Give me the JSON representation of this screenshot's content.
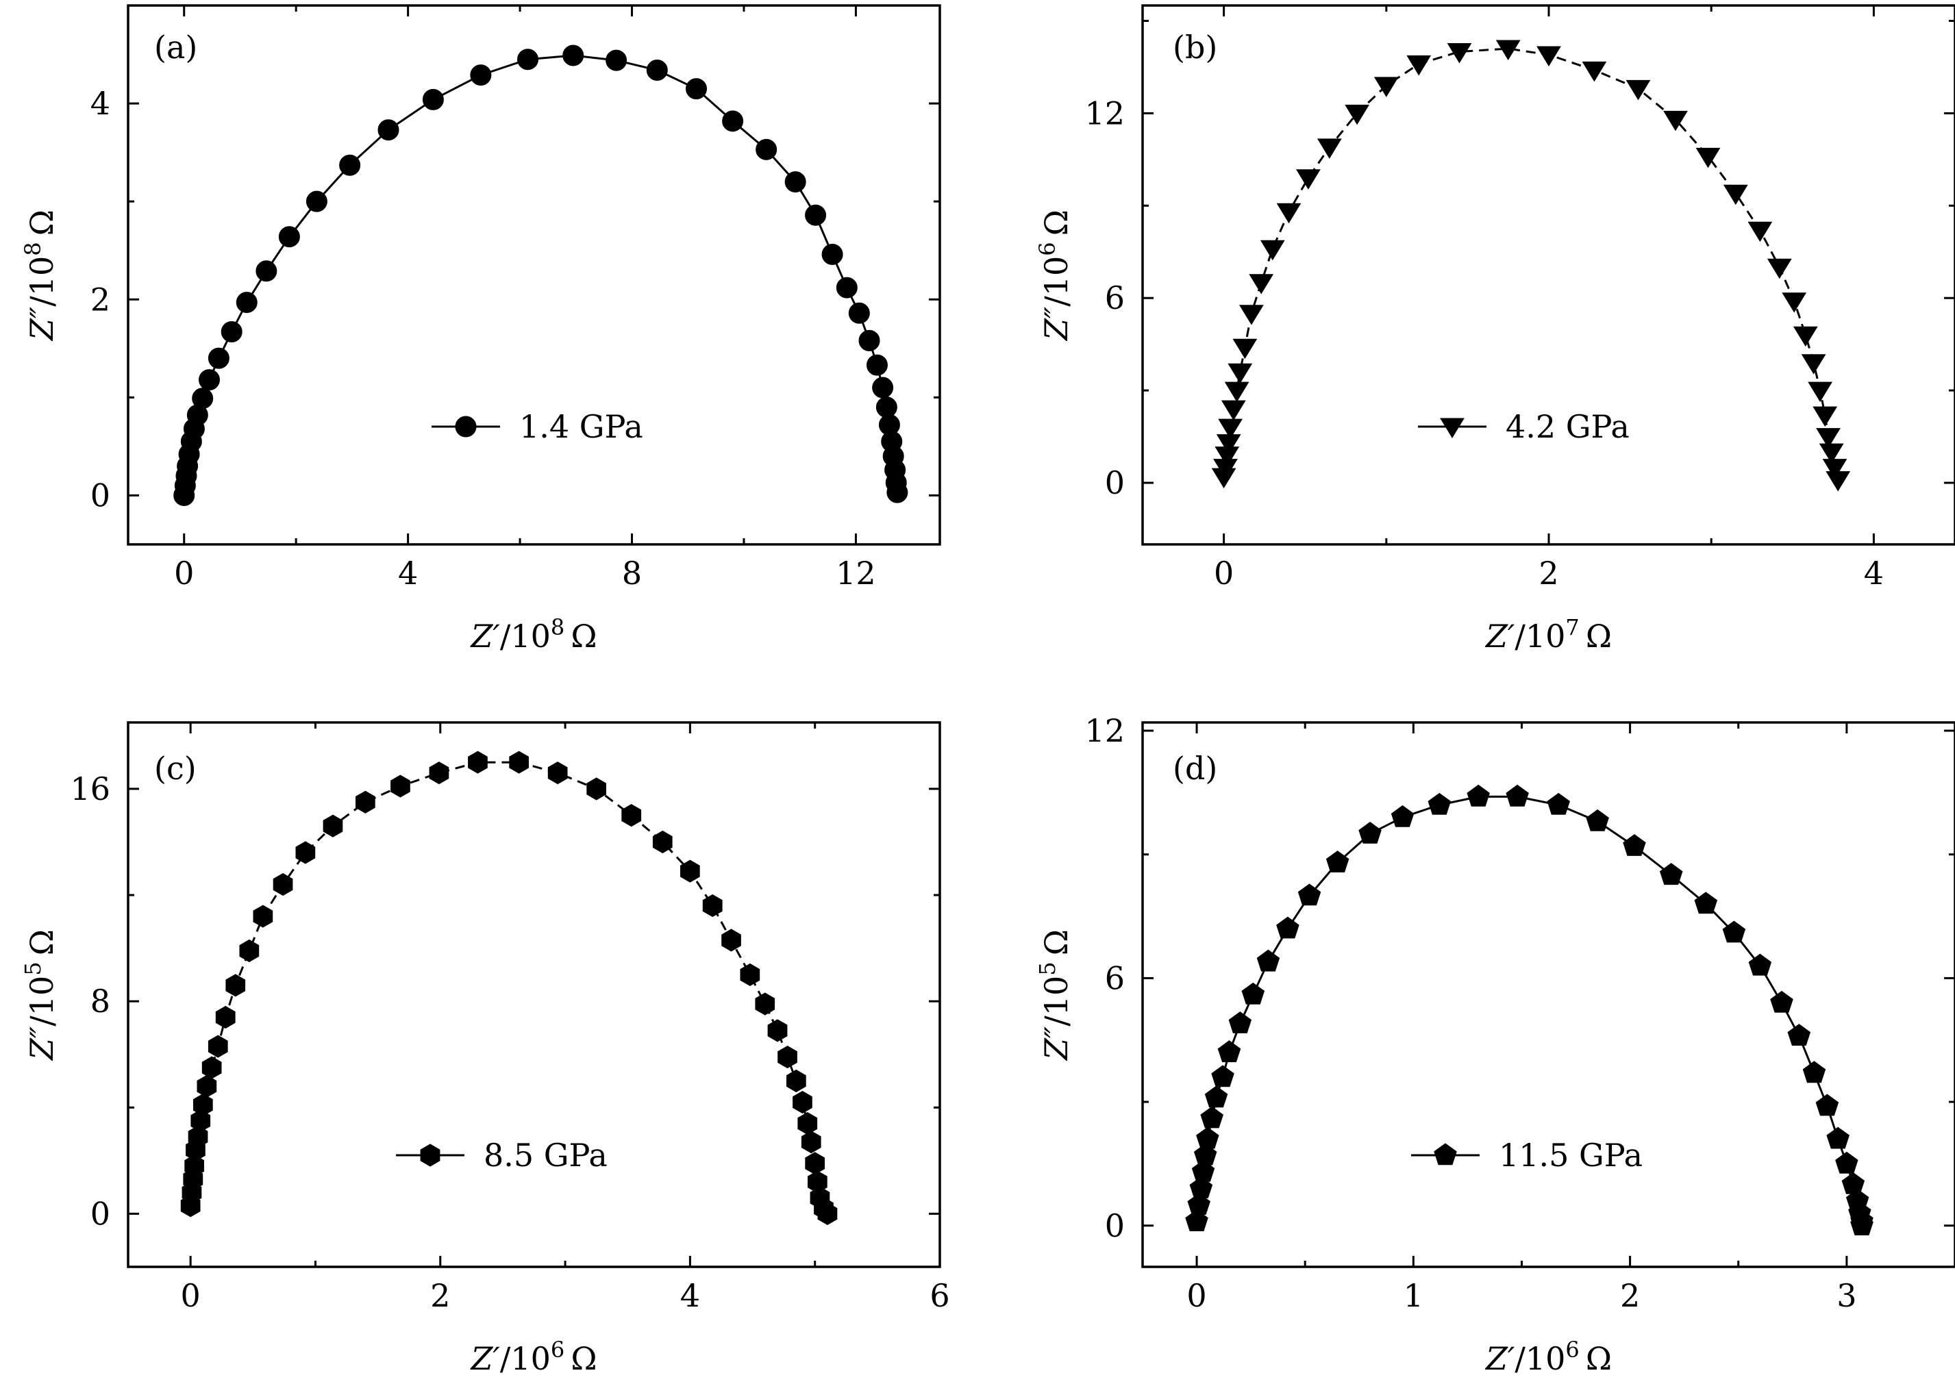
{
  "chart_data": [
    {
      "type": "scatter",
      "panel_label": "(a)",
      "xlabel": "Z′/10⁸ Ω",
      "ylabel": "Z″/10⁸ Ω",
      "xlim": [
        -1.0,
        13.5
      ],
      "ylim": [
        -0.5,
        5.0
      ],
      "xticks": [
        0,
        4,
        8,
        12
      ],
      "yticks": [
        0,
        2,
        4
      ],
      "legend": "top-center",
      "series": [
        {
          "name": "1.4 GPa",
          "marker": "circle",
          "line": "solid",
          "x": [
            0.0,
            0.02,
            0.04,
            0.06,
            0.09,
            0.13,
            0.18,
            0.24,
            0.33,
            0.45,
            0.62,
            0.85,
            1.12,
            1.47,
            1.88,
            2.37,
            2.96,
            3.65,
            4.45,
            5.3,
            6.14,
            6.95,
            7.72,
            8.45,
            9.15,
            9.8,
            10.4,
            10.92,
            11.28,
            11.58,
            11.84,
            12.06,
            12.24,
            12.38,
            12.48,
            12.55,
            12.6,
            12.64,
            12.67,
            12.7,
            12.72,
            12.74
          ],
          "y": [
            0.0,
            0.1,
            0.2,
            0.3,
            0.42,
            0.55,
            0.68,
            0.82,
            0.99,
            1.18,
            1.4,
            1.67,
            1.97,
            2.29,
            2.64,
            3.0,
            3.37,
            3.73,
            4.04,
            4.29,
            4.45,
            4.49,
            4.44,
            4.34,
            4.15,
            3.82,
            3.53,
            3.2,
            2.86,
            2.46,
            2.12,
            1.86,
            1.58,
            1.33,
            1.1,
            0.9,
            0.72,
            0.55,
            0.4,
            0.26,
            0.13,
            0.03
          ]
        }
      ]
    },
    {
      "type": "scatter",
      "panel_label": "(b)",
      "xlabel": "Z′/10⁷ Ω",
      "ylabel": "Z″/10⁶ Ω",
      "xlim": [
        -0.5,
        4.5
      ],
      "ylim": [
        -2.0,
        15.5
      ],
      "xticks": [
        0,
        2,
        4
      ],
      "yticks": [
        0,
        6,
        12
      ],
      "legend": "top-center",
      "series": [
        {
          "name": "4.2 GPa",
          "marker": "triangle-down",
          "line": "dashed",
          "x": [
            0.0,
            0.01,
            0.02,
            0.03,
            0.04,
            0.06,
            0.08,
            0.1,
            0.13,
            0.17,
            0.23,
            0.3,
            0.4,
            0.52,
            0.65,
            0.82,
            1.0,
            1.2,
            1.45,
            1.75,
            2.0,
            2.28,
            2.55,
            2.78,
            2.98,
            3.15,
            3.3,
            3.42,
            3.51,
            3.58,
            3.63,
            3.67,
            3.7,
            3.72,
            3.74,
            3.76,
            3.78
          ],
          "y": [
            0.2,
            0.5,
            0.9,
            1.3,
            1.8,
            2.4,
            3.0,
            3.6,
            4.4,
            5.5,
            6.5,
            7.6,
            8.8,
            9.9,
            10.9,
            12.0,
            12.9,
            13.6,
            14.0,
            14.1,
            13.9,
            13.4,
            12.8,
            11.8,
            10.6,
            9.4,
            8.2,
            7.0,
            5.9,
            4.8,
            3.9,
            3.0,
            2.2,
            1.5,
            1.0,
            0.5,
            0.1
          ]
        }
      ]
    },
    {
      "type": "scatter",
      "panel_label": "(c)",
      "xlabel": "Z′/10⁶ Ω",
      "ylabel": "Z″/10⁵ Ω",
      "xlim": [
        -0.5,
        6.0
      ],
      "ylim": [
        -2.0,
        18.5
      ],
      "xticks": [
        0,
        2,
        4,
        6
      ],
      "yticks": [
        0,
        8,
        16
      ],
      "legend": "top-center",
      "series": [
        {
          "name": "8.5 GPa",
          "marker": "hexagon",
          "line": "dashed",
          "x": [
            0.0,
            0.01,
            0.02,
            0.03,
            0.04,
            0.06,
            0.08,
            0.1,
            0.13,
            0.17,
            0.22,
            0.28,
            0.36,
            0.47,
            0.58,
            0.74,
            0.92,
            1.14,
            1.4,
            1.68,
            1.99,
            2.3,
            2.63,
            2.94,
            3.25,
            3.53,
            3.78,
            4.0,
            4.18,
            4.33,
            4.48,
            4.6,
            4.7,
            4.78,
            4.85,
            4.9,
            4.94,
            4.97,
            5.0,
            5.02,
            5.04,
            5.07,
            5.1
          ],
          "y": [
            0.3,
            0.8,
            1.3,
            1.8,
            2.4,
            2.9,
            3.5,
            4.1,
            4.8,
            5.5,
            6.3,
            7.4,
            8.6,
            9.9,
            11.2,
            12.4,
            13.6,
            14.6,
            15.5,
            16.1,
            16.6,
            17.0,
            17.0,
            16.6,
            16.0,
            15.0,
            14.0,
            12.9,
            11.6,
            10.3,
            9.0,
            7.9,
            6.9,
            5.9,
            5.0,
            4.2,
            3.4,
            2.7,
            1.9,
            1.2,
            0.6,
            0.2,
            0.0
          ]
        }
      ]
    },
    {
      "type": "scatter",
      "panel_label": "(d)",
      "xlabel": "Z′/10⁶ Ω",
      "ylabel": "Z″/10⁵ Ω",
      "xlim": [
        -0.25,
        3.5
      ],
      "ylim": [
        -1.0,
        12.2
      ],
      "xticks": [
        0,
        1,
        2,
        3
      ],
      "yticks": [
        0,
        6,
        12
      ],
      "legend": "top-center",
      "series": [
        {
          "name": "11.5 GPa",
          "marker": "pentagon",
          "line": "solid",
          "x": [
            0.0,
            0.01,
            0.02,
            0.03,
            0.04,
            0.05,
            0.07,
            0.09,
            0.12,
            0.15,
            0.2,
            0.26,
            0.33,
            0.42,
            0.52,
            0.65,
            0.8,
            0.95,
            1.12,
            1.3,
            1.48,
            1.67,
            1.85,
            2.02,
            2.19,
            2.35,
            2.48,
            2.6,
            2.7,
            2.78,
            2.85,
            2.91,
            2.96,
            3.0,
            3.03,
            3.05,
            3.06,
            3.07,
            3.07,
            3.07
          ],
          "y": [
            0.1,
            0.5,
            0.9,
            1.3,
            1.7,
            2.1,
            2.6,
            3.1,
            3.6,
            4.2,
            4.9,
            5.6,
            6.4,
            7.2,
            8.0,
            8.8,
            9.5,
            9.9,
            10.2,
            10.4,
            10.4,
            10.2,
            9.8,
            9.2,
            8.5,
            7.8,
            7.1,
            6.3,
            5.4,
            4.6,
            3.7,
            2.9,
            2.1,
            1.5,
            1.0,
            0.6,
            0.3,
            0.1,
            0.0,
            0.0
          ]
        }
      ]
    }
  ]
}
